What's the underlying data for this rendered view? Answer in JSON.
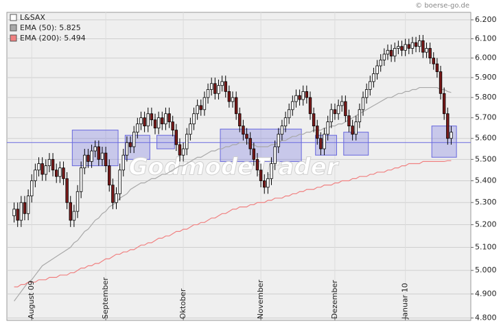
{
  "chart_data": {
    "type": "candlestick",
    "source": "© boerse-go.de",
    "watermark": "GodmodeTrader",
    "log_scale": true,
    "grid": true,
    "legend": "upper left",
    "categories": [
      null,
      null,
      null,
      null,
      null,
      "August 09",
      null,
      null,
      null,
      null,
      null,
      null,
      null,
      null,
      null,
      null,
      null,
      null,
      null,
      null,
      null,
      null,
      null,
      null,
      null,
      null,
      "September",
      null,
      null,
      null,
      null,
      null,
      null,
      null,
      null,
      null,
      null,
      null,
      null,
      null,
      null,
      null,
      null,
      null,
      null,
      null,
      null,
      null,
      "Oktober",
      null,
      null,
      null,
      null,
      null,
      null,
      null,
      null,
      null,
      null,
      null,
      null,
      null,
      null,
      null,
      null,
      null,
      null,
      null,
      null,
      null,
      "November",
      null,
      null,
      null,
      null,
      null,
      null,
      null,
      null,
      null,
      null,
      null,
      null,
      null,
      null,
      null,
      null,
      null,
      null,
      null,
      null,
      "Dezember",
      null,
      null,
      null,
      null,
      null,
      null,
      null,
      null,
      null,
      null,
      null,
      null,
      null,
      null,
      null,
      null,
      null,
      null,
      null,
      "Januar 10",
      null,
      null,
      null,
      null,
      null,
      null,
      null,
      null,
      null,
      null,
      null,
      null,
      null
    ],
    "ylim": [
      4.79,
      6.24
    ],
    "yticks": [
      {
        "value": 4.8,
        "label": "4.800"
      },
      {
        "value": 4.9,
        "label": "4.900"
      },
      {
        "value": 5.0,
        "label": "5.000"
      },
      {
        "value": 5.1,
        "label": "5.100"
      },
      {
        "value": 5.2,
        "label": "5.200"
      },
      {
        "value": 5.3,
        "label": "5.300"
      },
      {
        "value": 5.4,
        "label": "5.400"
      },
      {
        "value": 5.5,
        "label": "5.500"
      },
      {
        "value": 5.6,
        "label": "5.600"
      },
      {
        "value": 5.7,
        "label": "5.700"
      },
      {
        "value": 5.8,
        "label": "5.800"
      },
      {
        "value": 5.9,
        "label": "5.900"
      },
      {
        "value": 6.0,
        "label": "6.000"
      },
      {
        "value": 6.1,
        "label": "6.100"
      },
      {
        "value": 6.2,
        "label": "6.200"
      }
    ],
    "hline": {
      "value": 5.58,
      "color": "#6a6ae0"
    },
    "zones": {
      "color": "#6666dd",
      "items": [
        {
          "from": 17,
          "to": 29,
          "low": 5.47,
          "high": 5.64
        },
        {
          "from": 32,
          "to": 38,
          "low": 5.5,
          "high": 5.615
        },
        {
          "from": 41,
          "to": 45,
          "low": 5.55,
          "high": 5.615
        },
        {
          "from": 59,
          "to": 81,
          "low": 5.49,
          "high": 5.645
        },
        {
          "from": 86,
          "to": 91,
          "low": 5.52,
          "high": 5.615
        },
        {
          "from": 94,
          "to": 100,
          "low": 5.52,
          "high": 5.63
        },
        {
          "from": 119,
          "to": 125,
          "low": 5.51,
          "high": 5.66
        }
      ]
    },
    "series": [
      {
        "name": "L&SAX",
        "type": "candlestick",
        "color": "#ffffff",
        "up_color": "#ffffff",
        "down_color": "#7a1a1a",
        "open": [
          5.24,
          5.27,
          5.22,
          5.3,
          5.25,
          5.33,
          5.4,
          5.45,
          5.48,
          5.43,
          5.47,
          5.5,
          5.45,
          5.42,
          5.46,
          5.41,
          5.3,
          5.22,
          5.26,
          5.35,
          5.46,
          5.52,
          5.49,
          5.54,
          5.56,
          5.5,
          5.53,
          5.47,
          5.38,
          5.3,
          5.34,
          5.45,
          5.52,
          5.58,
          5.56,
          5.63,
          5.67,
          5.7,
          5.66,
          5.72,
          5.69,
          5.65,
          5.7,
          5.67,
          5.72,
          5.68,
          5.64,
          5.57,
          5.52,
          5.55,
          5.62,
          5.67,
          5.72,
          5.76,
          5.74,
          5.8,
          5.84,
          5.87,
          5.82,
          5.86,
          5.88,
          5.83,
          5.78,
          5.8,
          5.72,
          5.66,
          5.62,
          5.6,
          5.55,
          5.5,
          5.45,
          5.4,
          5.37,
          5.41,
          5.48,
          5.56,
          5.62,
          5.66,
          5.7,
          5.74,
          5.78,
          5.81,
          5.79,
          5.83,
          5.8,
          5.72,
          5.66,
          5.6,
          5.55,
          5.62,
          5.68,
          5.74,
          5.72,
          5.76,
          5.78,
          5.71,
          5.66,
          5.62,
          5.68,
          5.74,
          5.8,
          5.84,
          5.88,
          5.92,
          5.96,
          5.99,
          6.02,
          6.04,
          6.01,
          6.05,
          6.06,
          6.04,
          6.07,
          6.05,
          6.08,
          6.06,
          6.09,
          6.03,
          6.05,
          6.0,
          5.97,
          5.93,
          5.82,
          5.72,
          5.6
        ],
        "high": [
          5.3,
          5.3,
          5.33,
          5.33,
          5.36,
          5.43,
          5.48,
          5.51,
          5.51,
          5.5,
          5.53,
          5.53,
          5.48,
          5.49,
          5.49,
          5.44,
          5.33,
          5.29,
          5.38,
          5.49,
          5.55,
          5.55,
          5.57,
          5.59,
          5.59,
          5.56,
          5.56,
          5.5,
          5.41,
          5.37,
          5.48,
          5.55,
          5.61,
          5.61,
          5.66,
          5.7,
          5.73,
          5.73,
          5.75,
          5.75,
          5.72,
          5.73,
          5.73,
          5.75,
          5.75,
          5.71,
          5.67,
          5.6,
          5.58,
          5.65,
          5.7,
          5.75,
          5.79,
          5.79,
          5.83,
          5.87,
          5.9,
          5.9,
          5.89,
          5.91,
          5.91,
          5.86,
          5.83,
          5.83,
          5.75,
          5.69,
          5.65,
          5.63,
          5.58,
          5.53,
          5.48,
          5.43,
          5.44,
          5.51,
          5.59,
          5.65,
          5.69,
          5.73,
          5.77,
          5.81,
          5.84,
          5.84,
          5.86,
          5.86,
          5.83,
          5.75,
          5.69,
          5.63,
          5.65,
          5.71,
          5.77,
          5.77,
          5.79,
          5.81,
          5.81,
          5.74,
          5.69,
          5.71,
          5.77,
          5.83,
          5.87,
          5.91,
          5.95,
          5.99,
          6.02,
          6.05,
          6.07,
          6.07,
          6.08,
          6.09,
          6.09,
          6.1,
          6.1,
          6.11,
          6.11,
          6.12,
          6.12,
          6.08,
          6.08,
          6.03,
          6.0,
          5.96,
          5.85,
          5.75,
          5.66
        ],
        "low": [
          5.21,
          5.19,
          5.19,
          5.22,
          5.22,
          5.3,
          5.37,
          5.42,
          5.4,
          5.4,
          5.44,
          5.42,
          5.39,
          5.39,
          5.38,
          5.27,
          5.19,
          5.19,
          5.23,
          5.32,
          5.43,
          5.46,
          5.46,
          5.51,
          5.47,
          5.47,
          5.44,
          5.35,
          5.27,
          5.27,
          5.31,
          5.42,
          5.49,
          5.53,
          5.53,
          5.6,
          5.64,
          5.63,
          5.63,
          5.66,
          5.62,
          5.62,
          5.64,
          5.64,
          5.65,
          5.61,
          5.54,
          5.49,
          5.49,
          5.52,
          5.59,
          5.64,
          5.69,
          5.71,
          5.71,
          5.77,
          5.81,
          5.79,
          5.79,
          5.83,
          5.8,
          5.75,
          5.75,
          5.69,
          5.63,
          5.59,
          5.57,
          5.52,
          5.47,
          5.42,
          5.37,
          5.34,
          5.34,
          5.38,
          5.45,
          5.53,
          5.59,
          5.63,
          5.67,
          5.71,
          5.75,
          5.76,
          5.76,
          5.77,
          5.69,
          5.63,
          5.57,
          5.52,
          5.52,
          5.59,
          5.65,
          5.69,
          5.69,
          5.73,
          5.68,
          5.63,
          5.59,
          5.59,
          5.65,
          5.71,
          5.77,
          5.81,
          5.85,
          5.89,
          5.93,
          5.96,
          5.99,
          5.98,
          5.98,
          6.02,
          6.01,
          6.01,
          6.02,
          6.02,
          6.03,
          6.03,
          6.0,
          6.0,
          5.97,
          5.94,
          5.9,
          5.79,
          5.69,
          5.57,
          5.57
        ],
        "close": [
          5.27,
          5.22,
          5.3,
          5.25,
          5.33,
          5.4,
          5.45,
          5.48,
          5.43,
          5.47,
          5.5,
          5.45,
          5.42,
          5.46,
          5.41,
          5.3,
          5.22,
          5.26,
          5.35,
          5.46,
          5.52,
          5.49,
          5.54,
          5.56,
          5.5,
          5.53,
          5.47,
          5.38,
          5.3,
          5.34,
          5.45,
          5.52,
          5.58,
          5.56,
          5.63,
          5.67,
          5.7,
          5.66,
          5.72,
          5.69,
          5.65,
          5.7,
          5.67,
          5.72,
          5.68,
          5.64,
          5.57,
          5.52,
          5.55,
          5.62,
          5.67,
          5.72,
          5.76,
          5.74,
          5.8,
          5.84,
          5.87,
          5.82,
          5.86,
          5.88,
          5.83,
          5.78,
          5.8,
          5.72,
          5.66,
          5.62,
          5.6,
          5.55,
          5.5,
          5.45,
          5.4,
          5.37,
          5.41,
          5.48,
          5.56,
          5.62,
          5.66,
          5.7,
          5.74,
          5.78,
          5.81,
          5.79,
          5.83,
          5.8,
          5.72,
          5.66,
          5.6,
          5.55,
          5.62,
          5.68,
          5.74,
          5.72,
          5.76,
          5.78,
          5.71,
          5.66,
          5.62,
          5.68,
          5.74,
          5.8,
          5.84,
          5.88,
          5.92,
          5.96,
          5.99,
          6.02,
          6.04,
          6.01,
          6.05,
          6.06,
          6.04,
          6.07,
          6.05,
          6.08,
          6.06,
          6.09,
          6.03,
          6.05,
          6.0,
          5.97,
          5.93,
          5.82,
          5.72,
          5.6,
          5.63
        ]
      },
      {
        "name": "EMA (50): 5.825",
        "type": "line",
        "color": "#a8a8a8",
        "values": [
          4.87,
          4.89,
          4.91,
          4.93,
          4.95,
          4.96,
          4.98,
          5.0,
          5.02,
          5.03,
          5.04,
          5.05,
          5.06,
          5.07,
          5.08,
          5.09,
          5.1,
          5.12,
          5.13,
          5.15,
          5.17,
          5.18,
          5.2,
          5.22,
          5.23,
          5.25,
          5.26,
          5.28,
          5.29,
          5.3,
          5.32,
          5.33,
          5.34,
          5.36,
          5.37,
          5.38,
          5.39,
          5.39,
          5.4,
          5.41,
          5.41,
          5.42,
          5.43,
          5.43,
          5.44,
          5.45,
          5.46,
          5.47,
          5.47,
          5.48,
          5.49,
          5.5,
          5.51,
          5.51,
          5.52,
          5.53,
          5.54,
          5.54,
          5.55,
          5.55,
          5.56,
          5.56,
          5.57,
          5.57,
          5.58,
          5.58,
          5.58,
          5.57,
          5.57,
          5.56,
          5.56,
          5.56,
          5.56,
          5.57,
          5.57,
          5.58,
          5.59,
          5.59,
          5.6,
          5.61,
          5.61,
          5.62,
          5.62,
          5.63,
          5.63,
          5.64,
          5.64,
          5.64,
          5.65,
          5.65,
          5.66,
          5.66,
          5.67,
          5.67,
          5.68,
          5.69,
          5.7,
          5.71,
          5.72,
          5.73,
          5.74,
          5.75,
          5.76,
          5.77,
          5.78,
          5.79,
          5.8,
          5.8,
          5.81,
          5.82,
          5.82,
          5.83,
          5.83,
          5.84,
          5.84,
          5.85,
          5.85,
          5.85,
          5.85,
          5.85,
          5.85,
          5.84,
          5.84,
          5.83,
          5.825
        ]
      },
      {
        "name": "EMA (200): 5.494",
        "type": "line",
        "color": "#f08080",
        "values": [
          4.93,
          4.93,
          4.94,
          4.94,
          4.95,
          4.95,
          4.95,
          4.96,
          4.96,
          4.96,
          4.97,
          4.97,
          4.97,
          4.98,
          4.98,
          4.98,
          4.99,
          4.99,
          5.0,
          5.01,
          5.01,
          5.02,
          5.02,
          5.03,
          5.03,
          5.04,
          5.05,
          5.05,
          5.06,
          5.07,
          5.07,
          5.08,
          5.08,
          5.09,
          5.09,
          5.1,
          5.11,
          5.11,
          5.12,
          5.12,
          5.13,
          5.14,
          5.14,
          5.15,
          5.15,
          5.16,
          5.17,
          5.17,
          5.18,
          5.18,
          5.19,
          5.2,
          5.2,
          5.21,
          5.21,
          5.22,
          5.23,
          5.23,
          5.24,
          5.25,
          5.25,
          5.26,
          5.27,
          5.27,
          5.28,
          5.28,
          5.28,
          5.29,
          5.29,
          5.3,
          5.3,
          5.3,
          5.31,
          5.31,
          5.32,
          5.32,
          5.32,
          5.33,
          5.33,
          5.34,
          5.34,
          5.35,
          5.35,
          5.36,
          5.36,
          5.36,
          5.37,
          5.37,
          5.38,
          5.38,
          5.38,
          5.39,
          5.39,
          5.4,
          5.4,
          5.4,
          5.41,
          5.41,
          5.42,
          5.42,
          5.42,
          5.43,
          5.43,
          5.44,
          5.44,
          5.44,
          5.45,
          5.45,
          5.46,
          5.46,
          5.47,
          5.47,
          5.48,
          5.48,
          5.48,
          5.48,
          5.49,
          5.49,
          5.49,
          5.49,
          5.49,
          5.49,
          5.49,
          5.494,
          5.494
        ]
      }
    ]
  }
}
